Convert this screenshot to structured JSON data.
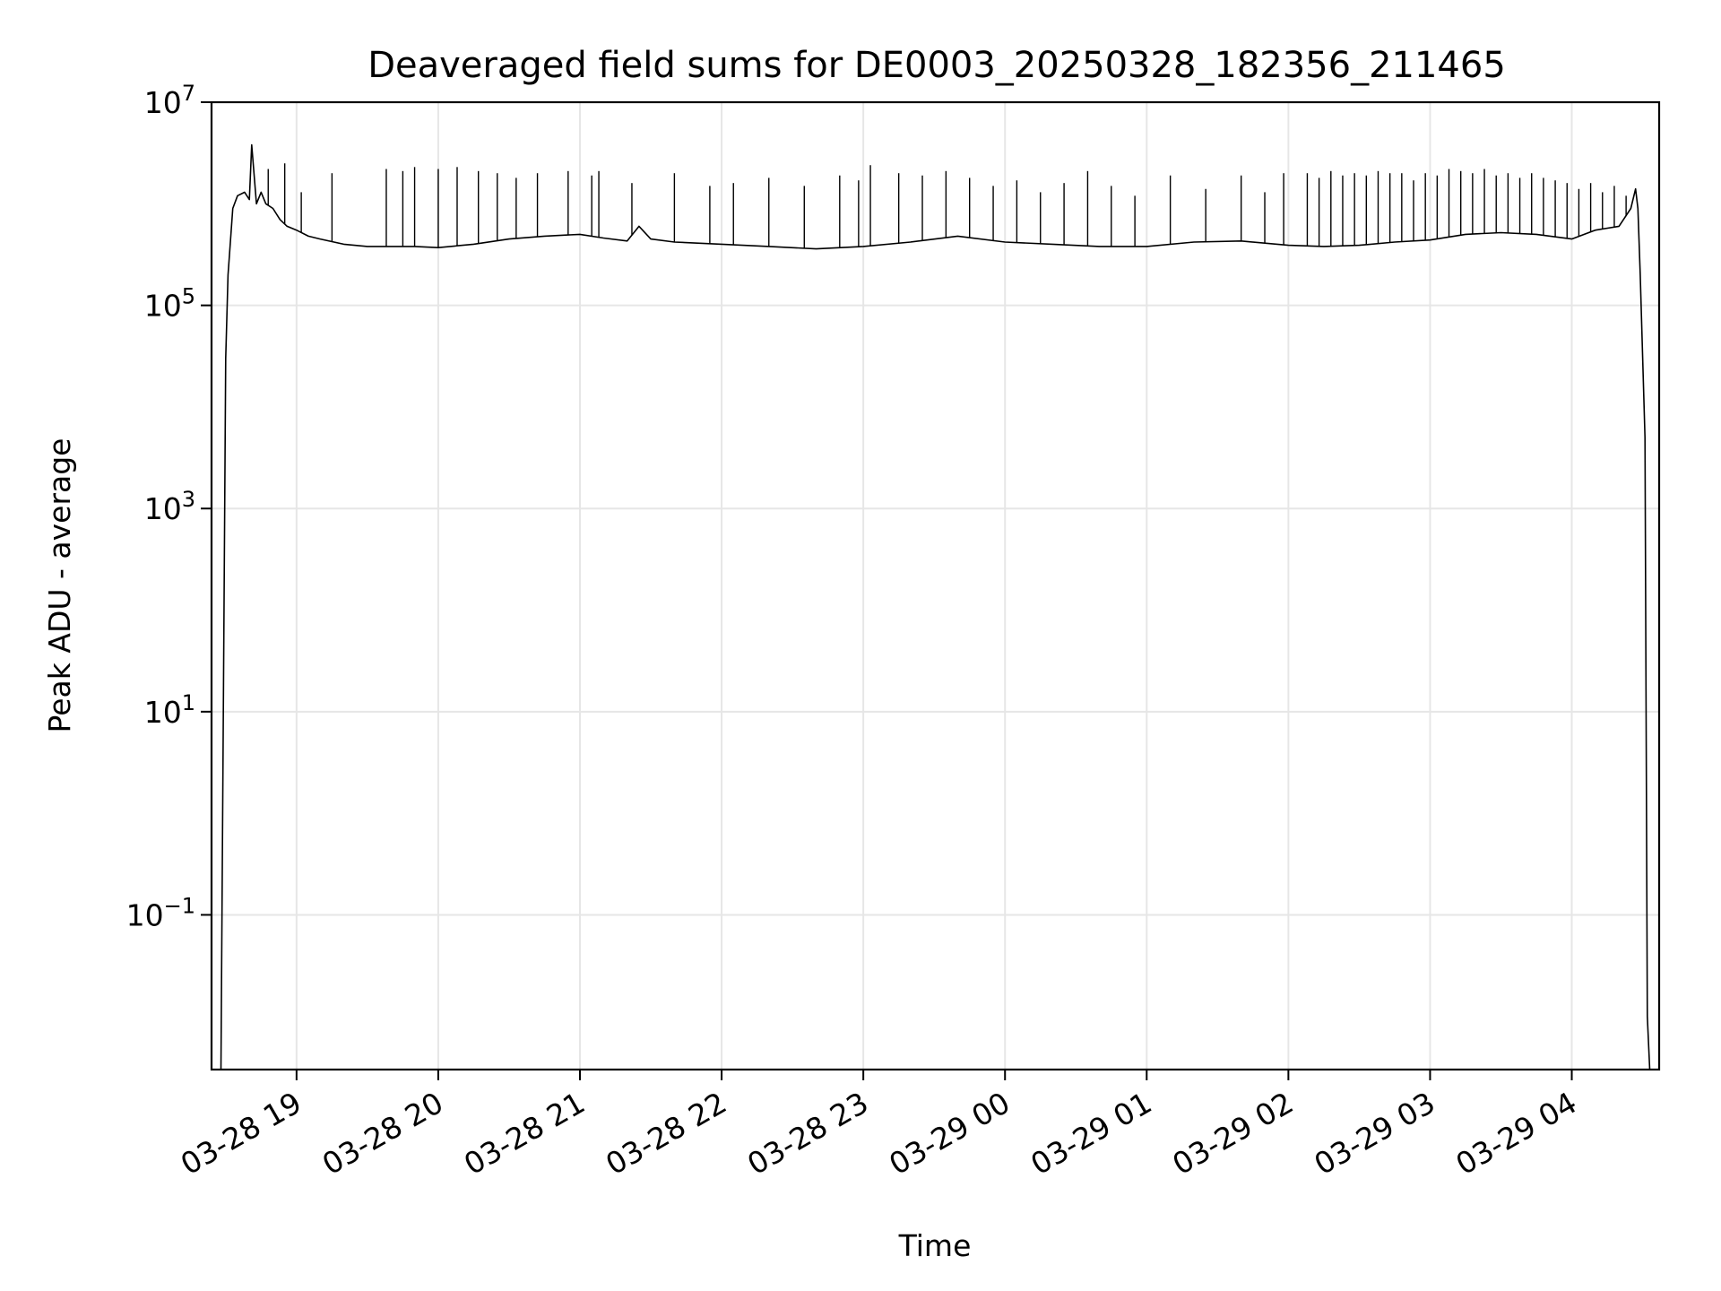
{
  "chart_data": {
    "type": "line",
    "title": "Deaveraged field sums for DE0003_20250328_182356_211465",
    "xlabel": "Time",
    "ylabel": "Peak ADU - average",
    "y_scale": "log",
    "ylim": [
      0.003,
      10000000
    ],
    "xlim": [
      "2025-03-28 18:24",
      "2025-03-29 04:37"
    ],
    "grid": true,
    "line_color": "#000000",
    "x_ticks": [
      {
        "t": "2025-03-28 19:00",
        "label": "03-28 19"
      },
      {
        "t": "2025-03-28 20:00",
        "label": "03-28 20"
      },
      {
        "t": "2025-03-28 21:00",
        "label": "03-28 21"
      },
      {
        "t": "2025-03-28 22:00",
        "label": "03-28 22"
      },
      {
        "t": "2025-03-28 23:00",
        "label": "03-28 23"
      },
      {
        "t": "2025-03-29 00:00",
        "label": "03-29 00"
      },
      {
        "t": "2025-03-29 01:00",
        "label": "03-29 01"
      },
      {
        "t": "2025-03-29 02:00",
        "label": "03-29 02"
      },
      {
        "t": "2025-03-29 03:00",
        "label": "03-29 03"
      },
      {
        "t": "2025-03-29 04:00",
        "label": "03-29 04"
      }
    ],
    "y_ticks": [
      {
        "value": 0.1,
        "base": "10",
        "exp": "−1"
      },
      {
        "value": 10,
        "base": "10",
        "exp": "1"
      },
      {
        "value": 1000,
        "base": "10",
        "exp": "3"
      },
      {
        "value": 100000,
        "base": "10",
        "exp": "5"
      },
      {
        "value": 10000000,
        "base": "10",
        "exp": "7"
      }
    ],
    "series": [
      {
        "x": [
          "2025-03-28 18:28",
          "2025-03-28 18:30",
          "2025-03-28 18:31",
          "2025-03-28 18:33",
          "2025-03-28 18:35",
          "2025-03-28 18:38",
          "2025-03-28 18:40",
          "2025-03-28 18:41",
          "2025-03-28 18:43",
          "2025-03-28 18:45",
          "2025-03-28 18:47",
          "2025-03-28 18:50",
          "2025-03-28 18:53",
          "2025-03-28 18:56",
          "2025-03-28 19:00",
          "2025-03-28 19:05",
          "2025-03-28 19:10",
          "2025-03-28 19:20",
          "2025-03-28 19:30",
          "2025-03-28 19:40",
          "2025-03-28 19:50",
          "2025-03-28 20:00",
          "2025-03-28 20:15",
          "2025-03-28 20:30",
          "2025-03-28 20:45",
          "2025-03-28 21:00",
          "2025-03-28 21:10",
          "2025-03-28 21:20",
          "2025-03-28 21:25",
          "2025-03-28 21:30",
          "2025-03-28 21:40",
          "2025-03-28 22:00",
          "2025-03-28 22:20",
          "2025-03-28 22:40",
          "2025-03-28 23:00",
          "2025-03-28 23:20",
          "2025-03-28 23:40",
          "2025-03-29 00:00",
          "2025-03-29 00:20",
          "2025-03-29 00:40",
          "2025-03-29 01:00",
          "2025-03-29 01:20",
          "2025-03-29 01:40",
          "2025-03-29 02:00",
          "2025-03-29 02:15",
          "2025-03-29 02:30",
          "2025-03-29 02:45",
          "2025-03-29 03:00",
          "2025-03-29 03:15",
          "2025-03-29 03:30",
          "2025-03-29 03:45",
          "2025-03-29 04:00",
          "2025-03-29 04:10",
          "2025-03-29 04:20",
          "2025-03-29 04:25",
          "2025-03-29 04:27",
          "2025-03-29 04:28",
          "2025-03-29 04:29",
          "2025-03-29 04:31",
          "2025-03-29 04:32",
          "2025-03-29 04:33"
        ],
        "values": [
          0.003,
          30000,
          200000,
          900000,
          1200000,
          1300000,
          1100000,
          3800000,
          1000000,
          1300000,
          1000000,
          900000,
          700000,
          600000,
          550000,
          480000,
          450000,
          400000,
          380000,
          380000,
          380000,
          370000,
          400000,
          450000,
          480000,
          500000,
          460000,
          430000,
          600000,
          450000,
          420000,
          400000,
          380000,
          360000,
          380000,
          420000,
          480000,
          420000,
          400000,
          380000,
          380000,
          420000,
          430000,
          390000,
          380000,
          390000,
          420000,
          440000,
          500000,
          520000,
          500000,
          450000,
          550000,
          600000,
          900000,
          1400000,
          900000,
          200000,
          5000,
          0.01,
          0.003
        ]
      }
    ],
    "spikes": {
      "x": [
        "2025-03-28 18:48",
        "2025-03-28 18:55",
        "2025-03-28 19:02",
        "2025-03-28 19:15",
        "2025-03-28 19:38",
        "2025-03-28 19:45",
        "2025-03-28 19:50",
        "2025-03-28 20:00",
        "2025-03-28 20:08",
        "2025-03-28 20:17",
        "2025-03-28 20:25",
        "2025-03-28 20:33",
        "2025-03-28 20:42",
        "2025-03-28 20:55",
        "2025-03-28 21:05",
        "2025-03-28 21:08",
        "2025-03-28 21:22",
        "2025-03-28 21:40",
        "2025-03-28 21:55",
        "2025-03-28 22:05",
        "2025-03-28 22:20",
        "2025-03-28 22:35",
        "2025-03-28 22:50",
        "2025-03-28 22:58",
        "2025-03-28 23:03",
        "2025-03-28 23:15",
        "2025-03-28 23:25",
        "2025-03-28 23:35",
        "2025-03-28 23:45",
        "2025-03-28 23:55",
        "2025-03-29 00:05",
        "2025-03-29 00:15",
        "2025-03-29 00:25",
        "2025-03-29 00:35",
        "2025-03-29 00:45",
        "2025-03-29 00:55",
        "2025-03-29 01:10",
        "2025-03-29 01:25",
        "2025-03-29 01:40",
        "2025-03-29 01:50",
        "2025-03-29 01:58",
        "2025-03-29 02:08",
        "2025-03-29 02:13",
        "2025-03-29 02:18",
        "2025-03-29 02:23",
        "2025-03-29 02:28",
        "2025-03-29 02:33",
        "2025-03-29 02:38",
        "2025-03-29 02:43",
        "2025-03-29 02:48",
        "2025-03-29 02:53",
        "2025-03-29 02:58",
        "2025-03-29 03:03",
        "2025-03-29 03:08",
        "2025-03-29 03:13",
        "2025-03-29 03:18",
        "2025-03-29 03:23",
        "2025-03-29 03:28",
        "2025-03-29 03:33",
        "2025-03-29 03:38",
        "2025-03-29 03:43",
        "2025-03-29 03:48",
        "2025-03-29 03:53",
        "2025-03-29 03:58",
        "2025-03-29 04:03",
        "2025-03-29 04:08",
        "2025-03-29 04:13",
        "2025-03-29 04:18",
        "2025-03-29 04:23"
      ],
      "values": [
        2200000,
        2500000,
        1300000,
        2000000,
        2200000,
        2100000,
        2300000,
        2200000,
        2300000,
        2100000,
        2000000,
        1800000,
        2000000,
        2100000,
        1900000,
        2100000,
        1600000,
        2000000,
        1500000,
        1600000,
        1800000,
        1500000,
        1900000,
        1700000,
        2400000,
        2000000,
        1900000,
        2100000,
        1800000,
        1500000,
        1700000,
        1300000,
        1600000,
        2100000,
        1500000,
        1200000,
        1900000,
        1400000,
        1900000,
        1300000,
        2000000,
        2000000,
        1800000,
        2100000,
        1900000,
        2000000,
        1900000,
        2100000,
        2000000,
        2000000,
        1700000,
        2000000,
        1900000,
        2200000,
        2100000,
        2000000,
        2200000,
        1900000,
        2000000,
        1800000,
        2000000,
        1800000,
        1700000,
        1600000,
        1400000,
        1600000,
        1300000,
        1500000,
        1200000
      ]
    }
  }
}
